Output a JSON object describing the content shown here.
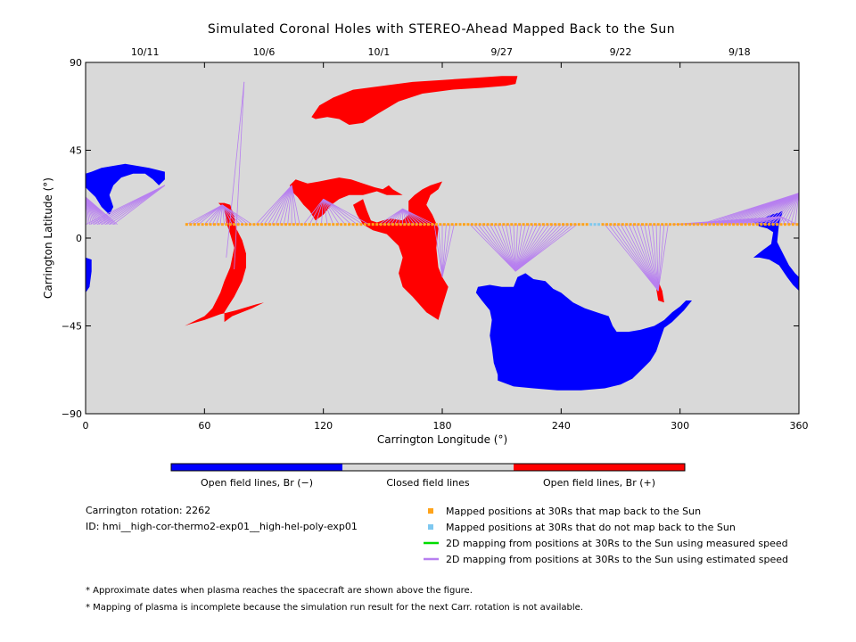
{
  "chart_data": {
    "type": "scatter",
    "title": "Simulated Coronal Holes with STEREO-Ahead Mapped Back to the Sun",
    "xlabel": "Carrington Longitude (°)",
    "ylabel": "Carrington Latitude (°)",
    "xlim": [
      0,
      360
    ],
    "ylim": [
      -90,
      90
    ],
    "x_ticks": [
      0,
      60,
      120,
      180,
      240,
      300,
      360
    ],
    "y_ticks": [
      -90,
      -45,
      0,
      45,
      90
    ],
    "x_tick_labels": [
      "0",
      "60",
      "120",
      "180",
      "240",
      "300",
      "360"
    ],
    "y_tick_labels": [
      "−90",
      "−45",
      "0",
      "45",
      "90"
    ],
    "top_dates": [
      {
        "label": "10/11",
        "x": 30
      },
      {
        "label": "10/6",
        "x": 90
      },
      {
        "label": "10/1",
        "x": 148
      },
      {
        "label": "9/27",
        "x": 210
      },
      {
        "label": "9/22",
        "x": 270
      },
      {
        "label": "9/18",
        "x": 330
      }
    ],
    "colorbar": [
      {
        "label": "Open field lines, Br (−)",
        "color": "#0000ff"
      },
      {
        "label": "Closed field lines",
        "color": "#d9d9d9"
      },
      {
        "label": "Open field lines, Br (+)",
        "color": "#ff0000"
      }
    ],
    "colors": {
      "background": "#d9d9d9",
      "negative_polarity": "#0000ff",
      "positive_polarity": "#ff0000",
      "mapped": "#ffa31a",
      "unmapped": "#7ec8f0",
      "measured_speed": "#00dd00",
      "estimated_speed": "#b77ff0"
    },
    "info": {
      "rotation": "Carrington rotation: 2262",
      "id": "ID: hmi__high-cor-thermo2-exp01__high-hel-poly-exp01"
    },
    "legend": [
      {
        "label": "Mapped positions at 30Rs that map back to the Sun",
        "symbol": "square",
        "color": "#ffa31a"
      },
      {
        "label": "Mapped positions at 30Rs that do not map back to the Sun",
        "symbol": "square",
        "color": "#7ec8f0"
      },
      {
        "label": "2D mapping from positions at 30Rs to the Sun using measured speed",
        "symbol": "line",
        "color": "#00dd00"
      },
      {
        "label": "2D mapping from positions at 30Rs to the Sun using estimated speed",
        "symbol": "line",
        "color": "#b77ff0"
      }
    ],
    "notes": [
      "* Approximate dates when plasma reaches the spacecraft are shown above the figure.",
      "* Mapping of plasma is incomplete because the simulation run result for the next Carr. rotation is not available."
    ],
    "trajectory_latitude": 7,
    "trajectory_x_range": [
      51,
      360
    ],
    "trajectory_spacing": 2,
    "unmapped_positions": [
      255,
      257,
      259
    ],
    "coronal_holes": [
      {
        "polarity": "+",
        "points": [
          [
            114,
            62
          ],
          [
            118,
            68
          ],
          [
            125,
            72
          ],
          [
            135,
            76
          ],
          [
            150,
            78
          ],
          [
            165,
            80
          ],
          [
            180,
            81
          ],
          [
            195,
            82
          ],
          [
            210,
            83
          ],
          [
            218,
            83
          ],
          [
            217,
            79
          ],
          [
            212,
            78
          ],
          [
            200,
            77
          ],
          [
            185,
            76
          ],
          [
            170,
            74
          ],
          [
            158,
            70
          ],
          [
            148,
            64
          ],
          [
            140,
            59
          ],
          [
            133,
            58
          ],
          [
            128,
            61
          ],
          [
            122,
            62
          ],
          [
            116,
            61
          ]
        ]
      },
      {
        "polarity": "+",
        "points": [
          [
            103,
            27
          ],
          [
            106,
            30
          ],
          [
            112,
            28
          ],
          [
            118,
            29
          ],
          [
            123,
            30
          ],
          [
            128,
            31
          ],
          [
            134,
            30
          ],
          [
            140,
            28
          ],
          [
            146,
            26
          ],
          [
            150,
            25
          ],
          [
            153,
            27
          ],
          [
            155,
            25
          ],
          [
            160,
            22
          ],
          [
            152,
            22
          ],
          [
            147,
            24
          ],
          [
            140,
            22
          ],
          [
            133,
            22
          ],
          [
            128,
            20
          ],
          [
            124,
            17
          ],
          [
            120,
            12
          ],
          [
            116,
            9
          ],
          [
            113,
            14
          ],
          [
            110,
            17
          ],
          [
            107,
            21
          ],
          [
            104,
            24
          ]
        ]
      },
      {
        "polarity": "+",
        "points": [
          [
            135,
            17
          ],
          [
            140,
            20
          ],
          [
            142,
            14
          ],
          [
            144,
            9
          ],
          [
            147,
            8
          ],
          [
            150,
            9
          ],
          [
            154,
            10
          ],
          [
            160,
            9
          ],
          [
            163,
            12
          ],
          [
            163,
            19
          ],
          [
            166,
            22
          ],
          [
            170,
            25
          ],
          [
            174,
            27
          ],
          [
            180,
            29
          ],
          [
            178,
            25
          ],
          [
            174,
            22
          ],
          [
            172,
            17
          ],
          [
            175,
            12
          ],
          [
            178,
            5
          ],
          [
            177,
            -5
          ],
          [
            178,
            -15
          ],
          [
            180,
            -20
          ],
          [
            183,
            -25
          ],
          [
            180,
            -35
          ],
          [
            178,
            -42
          ],
          [
            172,
            -38
          ],
          [
            165,
            -30
          ],
          [
            160,
            -25
          ],
          [
            158,
            -18
          ],
          [
            160,
            -10
          ],
          [
            158,
            -4
          ],
          [
            152,
            2
          ],
          [
            145,
            4
          ],
          [
            140,
            7
          ],
          [
            137,
            12
          ]
        ]
      },
      {
        "polarity": "+",
        "points": [
          [
            67,
            18
          ],
          [
            70,
            15
          ],
          [
            71,
            8
          ],
          [
            73,
            2
          ],
          [
            75,
            -5
          ],
          [
            73,
            -15
          ],
          [
            70,
            -22
          ],
          [
            68,
            -28
          ],
          [
            66,
            -32
          ],
          [
            64,
            -36
          ],
          [
            62,
            -38
          ],
          [
            60,
            -40
          ],
          [
            56,
            -42
          ],
          [
            50,
            -45
          ],
          [
            53,
            -44
          ],
          [
            60,
            -42
          ],
          [
            68,
            -39
          ],
          [
            76,
            -37
          ],
          [
            86,
            -34
          ],
          [
            90,
            -33
          ],
          [
            84,
            -36
          ],
          [
            74,
            -40
          ],
          [
            70,
            -43
          ],
          [
            70,
            -38
          ],
          [
            75,
            -30
          ],
          [
            79,
            -22
          ],
          [
            81,
            -15
          ],
          [
            81,
            -8
          ],
          [
            79,
            -1
          ],
          [
            76,
            5
          ],
          [
            75,
            11
          ],
          [
            73,
            17
          ],
          [
            70,
            18
          ]
        ]
      },
      {
        "polarity": "+",
        "points": [
          [
            289,
            -32
          ],
          [
            292,
            -33
          ],
          [
            291,
            -27
          ],
          [
            289,
            -22
          ],
          [
            288,
            -26
          ]
        ]
      },
      {
        "polarity": "-",
        "points": [
          [
            0,
            33
          ],
          [
            3,
            34
          ],
          [
            8,
            36
          ],
          [
            14,
            37
          ],
          [
            20,
            38
          ],
          [
            26,
            37
          ],
          [
            32,
            36
          ],
          [
            40,
            34
          ],
          [
            40,
            30
          ],
          [
            37,
            27
          ],
          [
            34,
            30
          ],
          [
            30,
            33
          ],
          [
            24,
            33
          ],
          [
            18,
            31
          ],
          [
            14,
            27
          ],
          [
            12,
            22
          ],
          [
            14,
            16
          ],
          [
            12,
            12
          ],
          [
            8,
            16
          ],
          [
            5,
            21
          ],
          [
            2,
            24
          ],
          [
            0,
            26
          ]
        ]
      },
      {
        "polarity": "-",
        "points": [
          [
            0,
            -10
          ],
          [
            3,
            -11
          ],
          [
            3,
            -17
          ],
          [
            2,
            -25
          ],
          [
            0,
            -28
          ]
        ]
      },
      {
        "polarity": "-",
        "points": [
          [
            198,
            -25
          ],
          [
            204,
            -24
          ],
          [
            210,
            -25
          ],
          [
            216,
            -25
          ],
          [
            218,
            -20
          ],
          [
            222,
            -18
          ],
          [
            226,
            -21
          ],
          [
            232,
            -22
          ],
          [
            236,
            -26
          ],
          [
            240,
            -28
          ],
          [
            246,
            -33
          ],
          [
            252,
            -36
          ],
          [
            258,
            -38
          ],
          [
            264,
            -40
          ],
          [
            266,
            -45
          ],
          [
            268,
            -48
          ],
          [
            274,
            -48
          ],
          [
            280,
            -47
          ],
          [
            287,
            -45
          ],
          [
            292,
            -42
          ],
          [
            296,
            -38
          ],
          [
            300,
            -35
          ],
          [
            303,
            -32
          ],
          [
            306,
            -32
          ],
          [
            302,
            -37
          ],
          [
            296,
            -43
          ],
          [
            292,
            -46
          ],
          [
            290,
            -52
          ],
          [
            288,
            -58
          ],
          [
            285,
            -63
          ],
          [
            281,
            -67
          ],
          [
            276,
            -72
          ],
          [
            270,
            -75
          ],
          [
            262,
            -77
          ],
          [
            250,
            -78
          ],
          [
            238,
            -78
          ],
          [
            226,
            -77
          ],
          [
            216,
            -76
          ],
          [
            208,
            -73
          ],
          [
            208,
            -70
          ],
          [
            206,
            -64
          ],
          [
            205,
            -56
          ],
          [
            204,
            -50
          ],
          [
            205,
            -42
          ],
          [
            204,
            -37
          ],
          [
            200,
            -32
          ],
          [
            197,
            -28
          ]
        ]
      },
      {
        "polarity": "-",
        "points": [
          [
            336,
            9
          ],
          [
            342,
            10
          ],
          [
            346,
            12
          ],
          [
            350,
            13
          ],
          [
            352,
            14
          ],
          [
            350,
            8
          ],
          [
            349,
            -2
          ],
          [
            352,
            -8
          ],
          [
            355,
            -14
          ],
          [
            358,
            -18
          ],
          [
            360,
            -20
          ],
          [
            360,
            -27
          ],
          [
            357,
            -24
          ],
          [
            354,
            -20
          ],
          [
            350,
            -14
          ],
          [
            345,
            -11
          ],
          [
            340,
            -10
          ],
          [
            337,
            -10
          ],
          [
            342,
            -6
          ],
          [
            346,
            -3
          ],
          [
            347,
            3
          ],
          [
            344,
            5
          ],
          [
            340,
            6
          ]
        ]
      }
    ],
    "field_line_groups": [
      {
        "target": [
          0,
          21
        ],
        "from": [
          0,
          16
        ],
        "step": 1
      },
      {
        "target": [
          40,
          27
        ],
        "from": [
          0,
          14
        ],
        "step": 2
      },
      {
        "target": [
          69,
          17
        ],
        "from": [
          60,
          84
        ],
        "step": 2
      },
      {
        "target": [
          69,
          17
        ],
        "from": [
          51,
          58
        ],
        "step": 2
      },
      {
        "target": [
          80,
          80
        ],
        "pts": [
          [
            71,
            -10
          ],
          [
            75,
            -16
          ]
        ]
      },
      {
        "target": [
          104,
          27
        ],
        "from": [
          86,
          108
        ],
        "step": 2
      },
      {
        "target": [
          120,
          20
        ],
        "from": [
          110,
          144
        ],
        "step": 3
      },
      {
        "target": [
          160,
          15
        ],
        "from": [
          148,
          176
        ],
        "step": 2
      },
      {
        "target": [
          180,
          -20
        ],
        "from": [
          176,
          186
        ],
        "step": 2
      },
      {
        "target": [
          217,
          -17
        ],
        "from": [
          194,
          248
        ],
        "step": 2
      },
      {
        "target": [
          289,
          -27
        ],
        "from": [
          262,
          294
        ],
        "step": 2
      },
      {
        "target": [
          351,
          11
        ],
        "from": [
          296,
          360
        ],
        "step": 3
      },
      {
        "target": [
          360,
          23
        ],
        "from": [
          310,
          360
        ],
        "step": 2
      }
    ]
  }
}
